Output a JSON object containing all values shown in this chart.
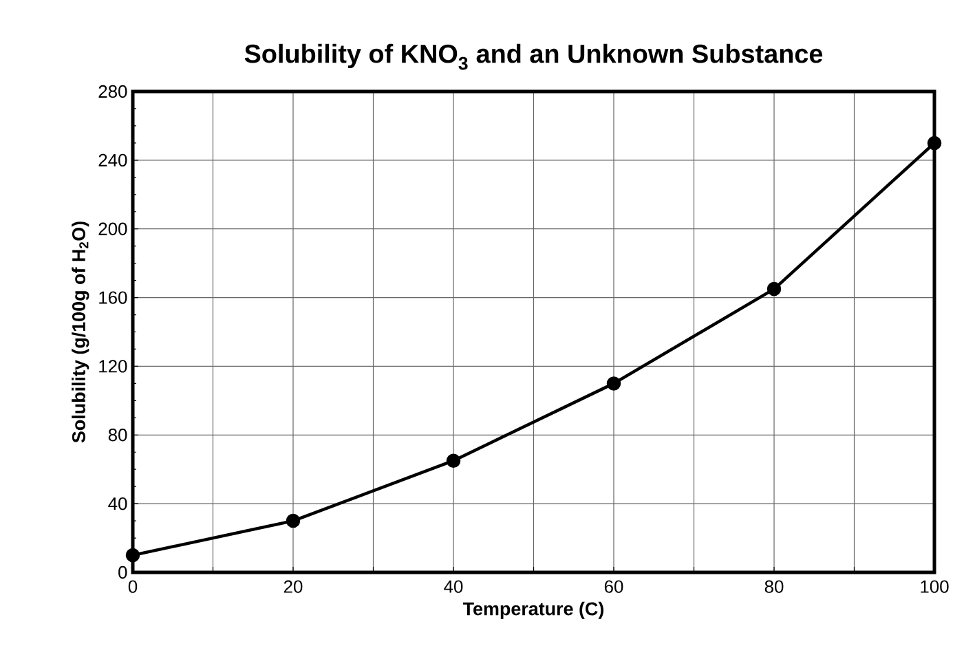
{
  "chart_data": {
    "type": "line",
    "title": "Solubility of KNO$_{3}$ and an Unknown Substance",
    "xlabel": "Temperature (C)",
    "ylabel": "Solubility (g/100g of H$_{2}$O)",
    "x": [
      0,
      20,
      40,
      60,
      80,
      100
    ],
    "series": [
      {
        "color": "#000000",
        "values": [
          10,
          30,
          65,
          110,
          165,
          250
        ]
      }
    ],
    "xlim": [
      0,
      100
    ],
    "ylim": [
      0,
      280
    ],
    "xticks": [
      0,
      {
        "value": 10,
        "label": null
      },
      20,
      {
        "value": 30,
        "label": null
      },
      40,
      {
        "value": 50,
        "label": null
      },
      60,
      {
        "value": 70,
        "label": null
      },
      80,
      {
        "value": 90,
        "label": null
      },
      100
    ],
    "yticks": [
      0,
      40,
      80,
      120,
      160,
      200,
      240,
      280
    ],
    "grid": true,
    "marker": "circle",
    "line_style": "solid"
  }
}
